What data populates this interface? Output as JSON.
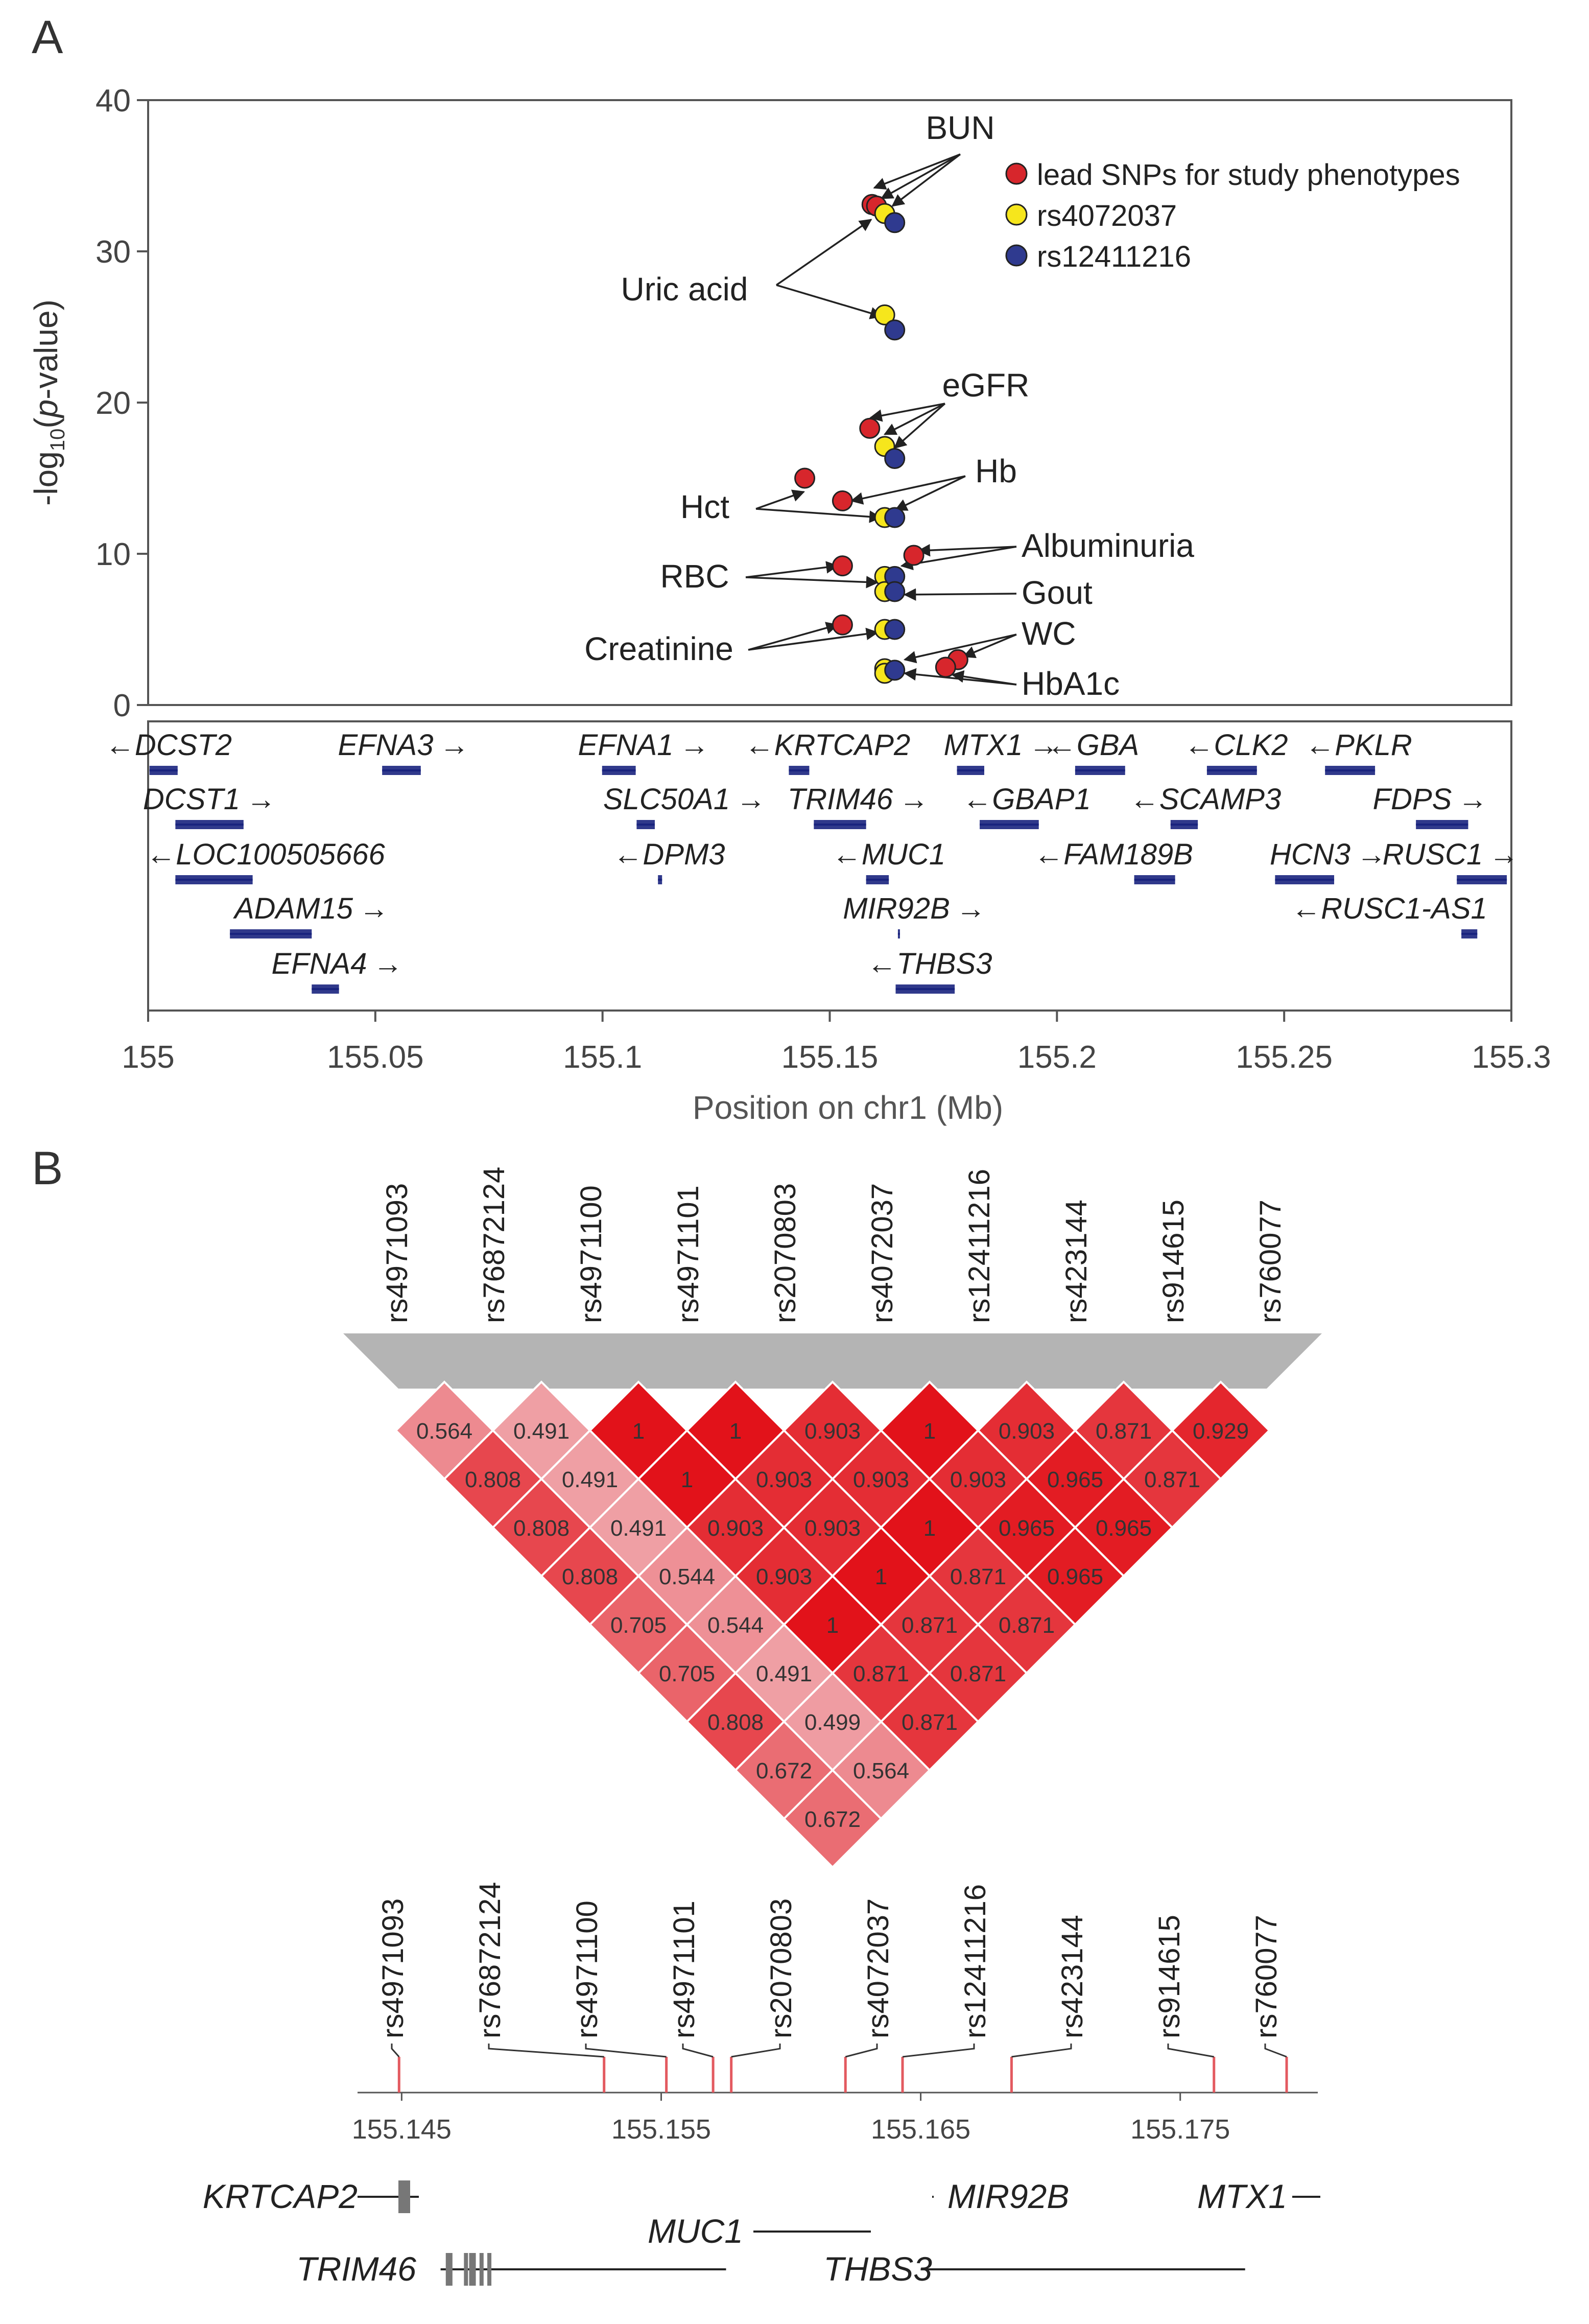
{
  "panel_labels": {
    "a": "A",
    "b": "B"
  },
  "colors": {
    "lead": "#d7262c",
    "snp1": "#f6e61c",
    "snp2": "#2f3a8f",
    "gene": "#1a237e",
    "ld_red": "#e2121a",
    "ld_gray": "#b4b4b4",
    "axis": "#555555"
  },
  "chart_data": [
    {
      "type": "scatter",
      "title": "",
      "xlabel": "Position on chr1 (Mb)",
      "ylabel_parts": [
        "-log",
        "10",
        "(",
        "p",
        "-value)"
      ],
      "xlim": [
        155.0,
        155.3
      ],
      "ylim": [
        0,
        40
      ],
      "xticks": [
        155.0,
        155.05,
        155.1,
        155.15,
        155.2,
        155.25,
        155.3
      ],
      "xtick_labels": [
        "155",
        "155.05",
        "155.1",
        "155.15",
        "155.2",
        "155.25",
        "155.3"
      ],
      "yticks": [
        0,
        10,
        20,
        30,
        40
      ],
      "ytick_labels": [
        "0",
        "10",
        "20",
        "30",
        "40"
      ],
      "legend": {
        "placement": "top-right",
        "entries": [
          {
            "label": "lead SNPs for study phenotypes",
            "color": "lead"
          },
          {
            "label": "rs4072037",
            "color": "snp1"
          },
          {
            "label": "rs12411216",
            "color": "snp2"
          }
        ]
      },
      "series": [
        {
          "name": "lead SNPs for study phenotypes",
          "color": "lead",
          "points": [
            {
              "x": 155.1593,
              "y": 33.1
            },
            {
              "x": 155.1603,
              "y": 33.0
            },
            {
              "x": 155.1588,
              "y": 18.3
            },
            {
              "x": 155.1445,
              "y": 15.0
            },
            {
              "x": 155.1528,
              "y": 13.5
            },
            {
              "x": 155.1685,
              "y": 9.9
            },
            {
              "x": 155.1528,
              "y": 9.2
            },
            {
              "x": 155.1528,
              "y": 5.3
            },
            {
              "x": 155.1782,
              "y": 3.0
            },
            {
              "x": 155.1755,
              "y": 2.5
            }
          ]
        },
        {
          "name": "rs4072037",
          "color": "snp1",
          "points": [
            {
              "x": 155.1621,
              "y": 32.5
            },
            {
              "x": 155.1621,
              "y": 25.8
            },
            {
              "x": 155.1621,
              "y": 17.1
            },
            {
              "x": 155.1621,
              "y": 12.4
            },
            {
              "x": 155.1621,
              "y": 8.5
            },
            {
              "x": 155.1621,
              "y": 7.5
            },
            {
              "x": 155.1621,
              "y": 5.0
            },
            {
              "x": 155.1621,
              "y": 2.4
            },
            {
              "x": 155.1621,
              "y": 2.1
            }
          ]
        },
        {
          "name": "rs12411216",
          "color": "snp2",
          "points": [
            {
              "x": 155.1643,
              "y": 31.9
            },
            {
              "x": 155.1643,
              "y": 24.8
            },
            {
              "x": 155.1643,
              "y": 16.3
            },
            {
              "x": 155.1643,
              "y": 12.4
            },
            {
              "x": 155.1643,
              "y": 8.5
            },
            {
              "x": 155.1643,
              "y": 7.5
            },
            {
              "x": 155.1643,
              "y": 5.0
            },
            {
              "x": 155.1643,
              "y": 2.3
            }
          ]
        }
      ],
      "annotations": [
        {
          "label": "BUN",
          "arrows": [
            [
              155.1598,
              34.2
            ],
            [
              155.1614,
              33.5
            ],
            [
              155.1638,
              33.0
            ]
          ]
        },
        {
          "label": "Uric acid",
          "arrows": [
            [
              155.1591,
              32.1
            ],
            [
              155.1614,
              25.7
            ]
          ]
        },
        {
          "label": "eGFR",
          "arrows": [
            [
              155.159,
              19.0
            ],
            [
              155.1621,
              17.9
            ],
            [
              155.1643,
              17.0
            ]
          ]
        },
        {
          "label": "Hb",
          "arrows": [
            [
              155.1548,
              13.5
            ],
            [
              155.1645,
              12.9
            ]
          ]
        },
        {
          "label": "Hct",
          "arrows": [
            [
              155.1443,
              14.1
            ],
            [
              155.1612,
              12.4
            ]
          ]
        },
        {
          "label": "Albuminuria",
          "arrows": [
            [
              155.1696,
              10.2
            ],
            [
              155.1658,
              9.2
            ]
          ]
        },
        {
          "label": "RBC",
          "arrows": [
            [
              155.1517,
              9.2
            ],
            [
              155.1605,
              8.1
            ]
          ]
        },
        {
          "label": "Gout",
          "arrows": [
            [
              155.1665,
              7.3
            ]
          ]
        },
        {
          "label": "Creatinine",
          "arrows": [
            [
              155.1517,
              5.3
            ],
            [
              155.1605,
              4.8
            ]
          ]
        },
        {
          "label": "WC",
          "arrows": [
            [
              155.1795,
              3.2
            ],
            [
              155.1665,
              3.0
            ]
          ]
        },
        {
          "label": "HbA1c",
          "arrows": [
            [
              155.177,
              2.0
            ],
            [
              155.1665,
              2.1
            ]
          ]
        }
      ],
      "genes": [
        {
          "name": "DCST2",
          "dir": "left",
          "start": 155.0003,
          "end": 155.0065,
          "row": 0
        },
        {
          "name": "EFNA3",
          "dir": "right",
          "start": 155.0515,
          "end": 155.06,
          "row": 0
        },
        {
          "name": "EFNA1",
          "dir": "right",
          "start": 155.0999,
          "end": 155.1073,
          "row": 0
        },
        {
          "name": "KRTCAP2",
          "dir": "left",
          "start": 155.141,
          "end": 155.1455,
          "row": 0
        },
        {
          "name": "MTX1",
          "dir": "right",
          "start": 155.178,
          "end": 155.184,
          "row": 0
        },
        {
          "name": "GBA",
          "dir": "left",
          "start": 155.204,
          "end": 155.215,
          "row": 0
        },
        {
          "name": "CLK2",
          "dir": "left",
          "start": 155.233,
          "end": 155.244,
          "row": 0
        },
        {
          "name": "PKLR",
          "dir": "left",
          "start": 155.259,
          "end": 155.27,
          "row": 0
        },
        {
          "name": "DCST1",
          "dir": "right",
          "start": 155.006,
          "end": 155.021,
          "row": 1
        },
        {
          "name": "SLC50A1",
          "dir": "right",
          "start": 155.1075,
          "end": 155.1115,
          "row": 1
        },
        {
          "name": "TRIM46",
          "dir": "right",
          "start": 155.1465,
          "end": 155.158,
          "row": 1
        },
        {
          "name": "GBAP1",
          "dir": "left",
          "start": 155.183,
          "end": 155.196,
          "row": 1
        },
        {
          "name": "SCAMP3",
          "dir": "left",
          "start": 155.225,
          "end": 155.231,
          "row": 1
        },
        {
          "name": "FDPS",
          "dir": "right",
          "start": 155.279,
          "end": 155.2905,
          "row": 1
        },
        {
          "name": "LOC100505666",
          "dir": "left",
          "start": 155.006,
          "end": 155.023,
          "row": 2
        },
        {
          "name": "DPM3",
          "dir": "left",
          "start": 155.1122,
          "end": 155.1131,
          "row": 2
        },
        {
          "name": "MUC1",
          "dir": "left",
          "start": 155.158,
          "end": 155.163,
          "row": 2
        },
        {
          "name": "FAM189B",
          "dir": "left",
          "start": 155.217,
          "end": 155.226,
          "row": 2
        },
        {
          "name": "HCN3",
          "dir": "right",
          "start": 155.248,
          "end": 155.261,
          "row": 2
        },
        {
          "name": "RUSC1",
          "dir": "right",
          "start": 155.288,
          "end": 155.299,
          "row": 2
        },
        {
          "name": "ADAM15",
          "dir": "right",
          "start": 155.018,
          "end": 155.036,
          "row": 3
        },
        {
          "name": "MIR92B",
          "dir": "right",
          "start": 155.165,
          "end": 155.1653,
          "row": 3
        },
        {
          "name": "RUSC1-AS1",
          "dir": "left",
          "start": 155.289,
          "end": 155.2925,
          "row": 3
        },
        {
          "name": "EFNA4",
          "dir": "right",
          "start": 155.036,
          "end": 155.042,
          "row": 4
        },
        {
          "name": "THBS3",
          "dir": "left",
          "start": 155.1645,
          "end": 155.1775,
          "row": 4
        }
      ]
    },
    {
      "type": "heatmap",
      "title": "",
      "snps": [
        "rs4971093",
        "rs76872124",
        "rs4971100",
        "rs4971101",
        "rs2070803",
        "rs4072037",
        "rs12411216",
        "rs423144",
        "rs914615",
        "rs760077"
      ],
      "snp_positions": [
        155.1449,
        155.1528,
        155.1552,
        155.157,
        155.1577,
        155.1621,
        155.1643,
        155.1685,
        155.1763,
        155.1791
      ],
      "diagonals": [
        [
          0.564,
          0.491,
          1,
          1,
          0.903,
          1,
          0.903,
          0.871,
          0.929
        ],
        [
          0.808,
          0.491,
          1,
          0.903,
          0.903,
          0.903,
          0.965,
          0.871
        ],
        [
          0.808,
          0.491,
          0.903,
          0.903,
          1,
          0.965,
          0.965
        ],
        [
          0.808,
          0.544,
          0.903,
          1,
          0.871,
          0.965
        ],
        [
          0.705,
          0.544,
          1,
          0.871,
          0.871
        ],
        [
          0.705,
          0.491,
          0.871,
          0.871
        ],
        [
          0.808,
          0.499,
          0.871
        ],
        [
          0.672,
          0.564
        ],
        [
          0.672
        ]
      ],
      "axis_ticks": [
        155.145,
        155.155,
        155.165,
        155.175
      ],
      "axis_tick_labels": [
        "155.145",
        "155.155",
        "155.165",
        "155.175"
      ],
      "axis_range": [
        155.1433,
        155.1803
      ],
      "genes": [
        {
          "name": "KRTCAP2",
          "start": 155.144,
          "end": 155.1458,
          "exons": [
            155.145,
            155.1452,
            155.1454,
            155.1456
          ],
          "row": 0,
          "label_side": "left"
        },
        {
          "name": "MUC1",
          "start": 155.1577,
          "end": 155.162,
          "exons": [],
          "row": 1,
          "label_side": "left"
        },
        {
          "name": "MIR92B",
          "start": 155.165,
          "end": 155.1651,
          "exons": [],
          "row": 0,
          "label_side": "right"
        },
        {
          "name": "MTX1",
          "start": 155.1778,
          "end": 155.179,
          "exons": [],
          "row": 0,
          "label_side": "left"
        },
        {
          "name": "TRIM46",
          "start": 155.1465,
          "end": 155.1575,
          "exons": [
            155.1467,
            155.1468,
            155.1474,
            155.1476,
            155.1477,
            155.148,
            155.1483
          ],
          "row": 2,
          "label_side": "left"
        },
        {
          "name": "THBS3",
          "start": 155.165,
          "end": 155.1775,
          "exons": [],
          "row": 2,
          "label_side": "left"
        }
      ]
    }
  ]
}
